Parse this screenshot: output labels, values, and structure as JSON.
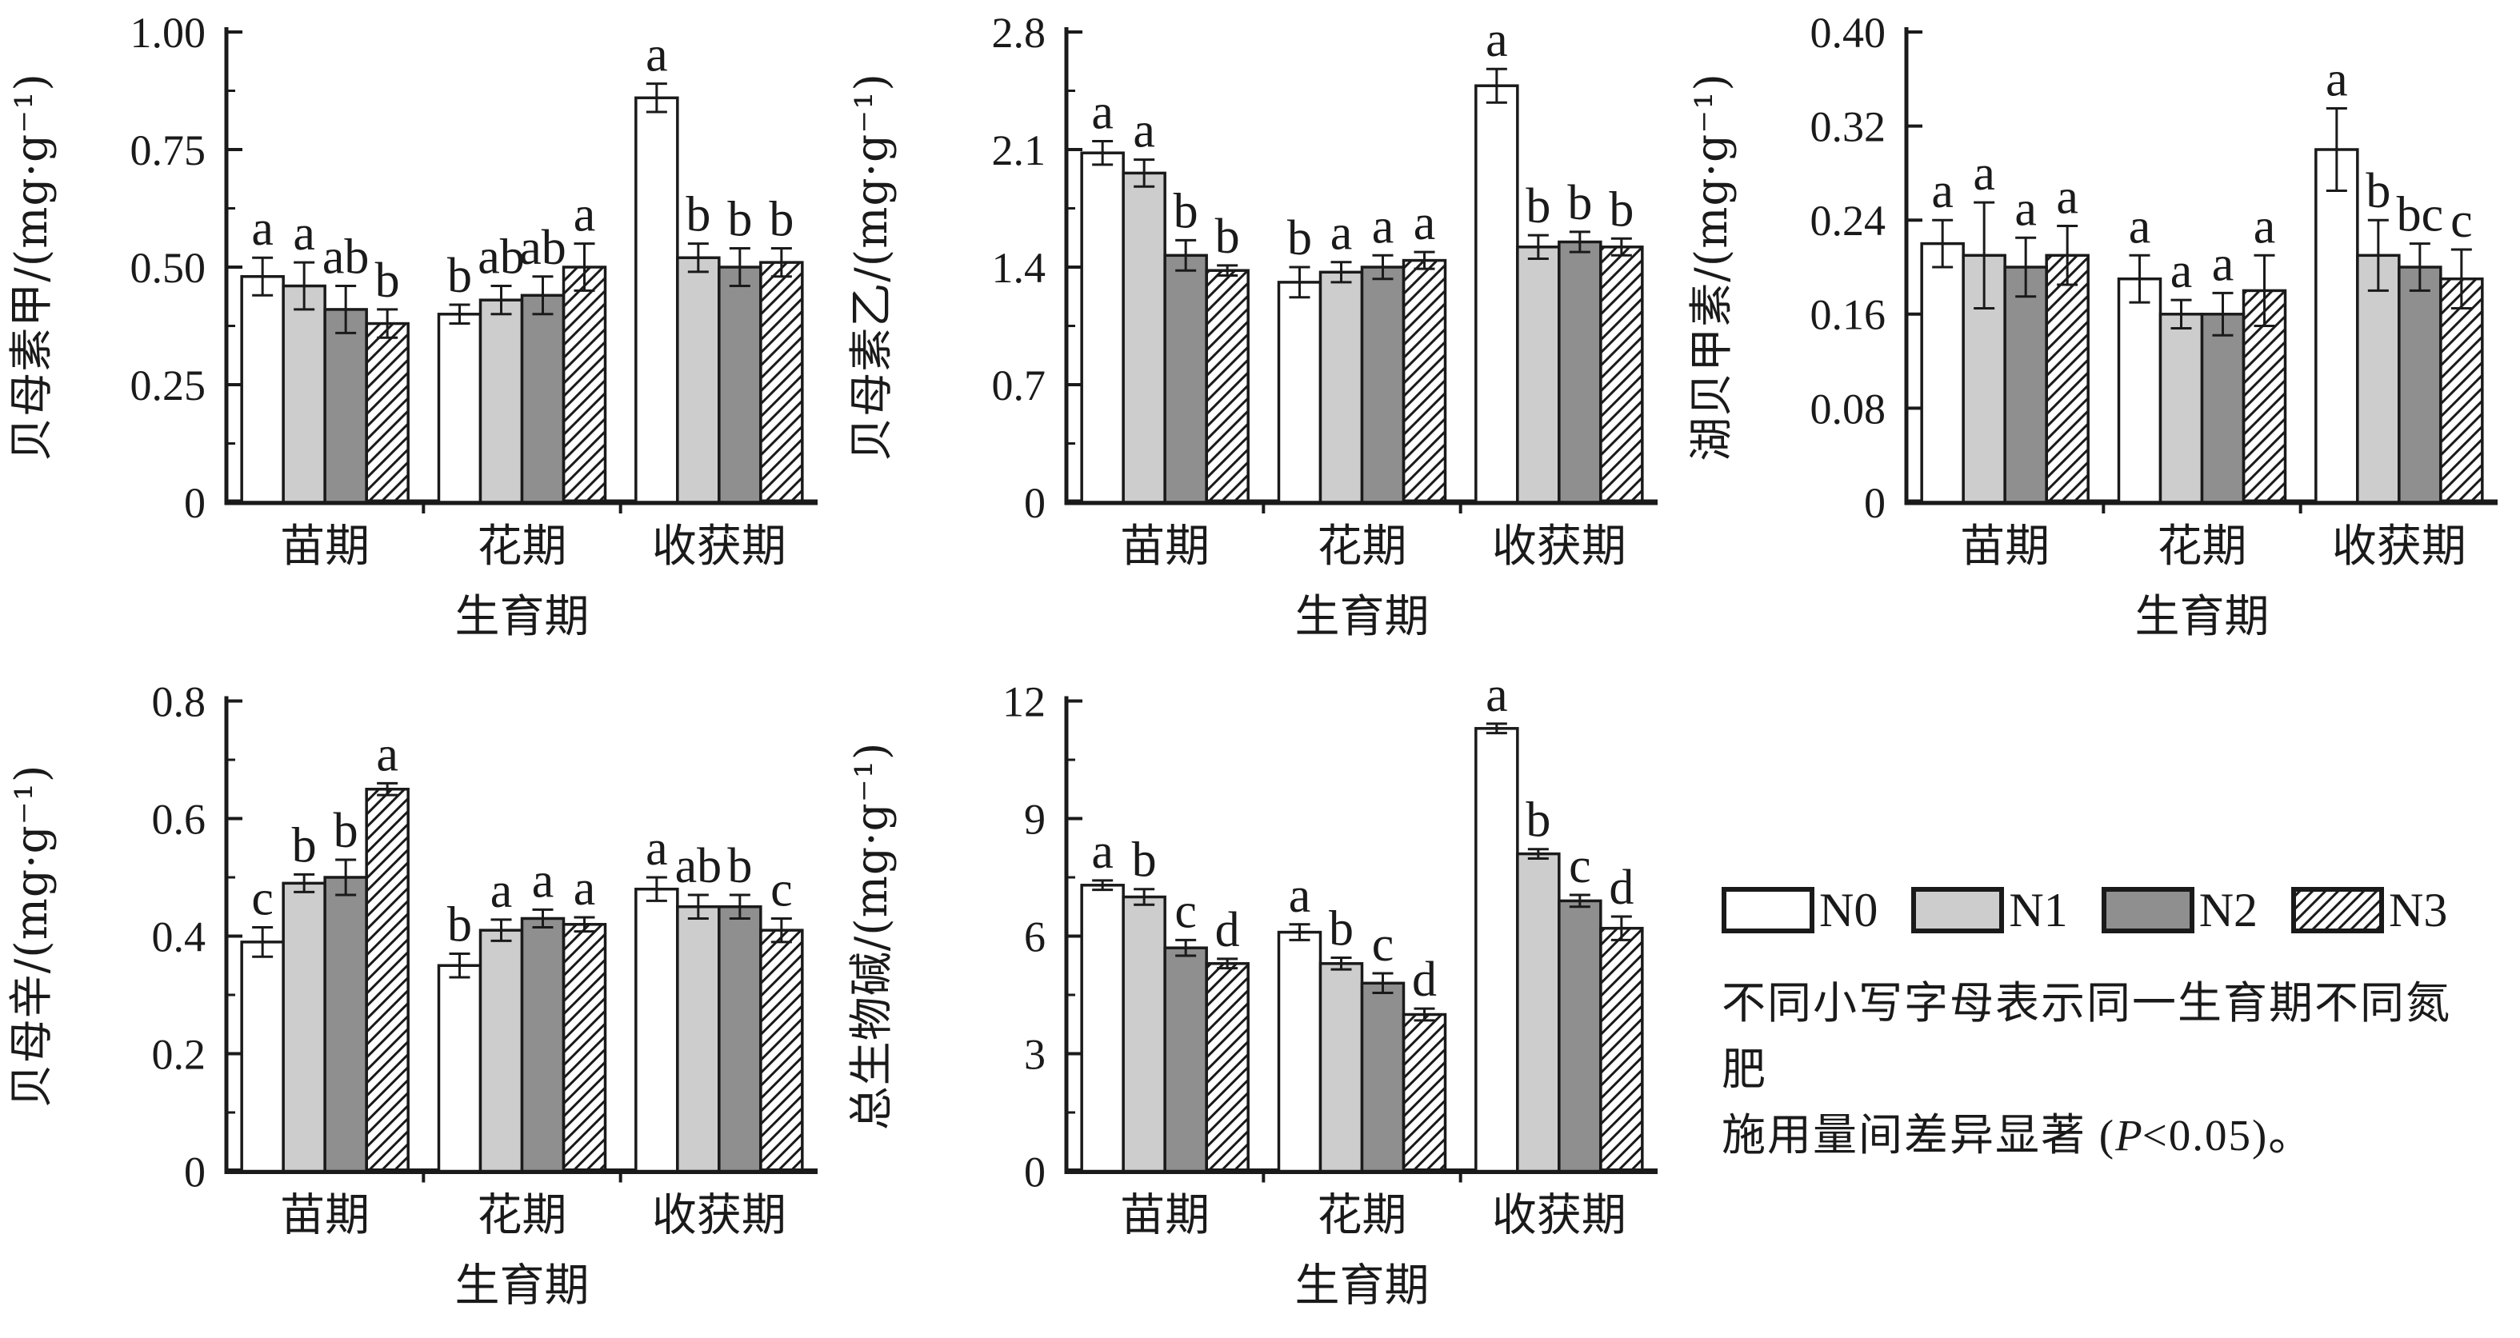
{
  "figure": {
    "background": "#ffffff",
    "axis_color": "#1a1a1a"
  },
  "treatments": [
    {
      "name": "N0",
      "fill": "#ffffff",
      "pattern": "solid"
    },
    {
      "name": "N1",
      "fill": "#cdcdcd",
      "pattern": "solid"
    },
    {
      "name": "N2",
      "fill": "#8f8f8f",
      "pattern": "solid"
    },
    {
      "name": "N3",
      "fill": "#ffffff",
      "pattern": "hatch"
    }
  ],
  "legend": {
    "note_line1": "不同小写字母表示同一生育期不同氮肥",
    "note_line2_pre": "施用量间差异显著 (",
    "note_p": "P",
    "note_line2_post": "<0.05)。"
  },
  "chart_data": [
    {
      "type": "bar",
      "ylabel": "贝母素甲/(mg·g⁻¹)",
      "xlabel": "生育期",
      "categories": [
        "苗期",
        "花期",
        "收获期"
      ],
      "ylim": [
        0,
        1.0
      ],
      "yticks": [
        "0",
        "0.25",
        "0.50",
        "0.75",
        "1.00"
      ],
      "minor_ticks": true,
      "grid": false,
      "legend_position": "none",
      "series": [
        {
          "name": "N0",
          "values": [
            0.48,
            0.4,
            0.86
          ],
          "errors": [
            0.04,
            0.02,
            0.03
          ],
          "letters": [
            "a",
            "b",
            "a"
          ]
        },
        {
          "name": "N1",
          "values": [
            0.46,
            0.43,
            0.52
          ],
          "errors": [
            0.05,
            0.03,
            0.03
          ],
          "letters": [
            "a",
            "ab",
            "b"
          ]
        },
        {
          "name": "N2",
          "values": [
            0.41,
            0.44,
            0.5
          ],
          "errors": [
            0.05,
            0.04,
            0.04
          ],
          "letters": [
            "ab",
            "ab",
            "b"
          ]
        },
        {
          "name": "N3",
          "values": [
            0.38,
            0.5,
            0.51
          ],
          "errors": [
            0.03,
            0.05,
            0.03
          ],
          "letters": [
            "b",
            "a",
            "b"
          ]
        }
      ]
    },
    {
      "type": "bar",
      "ylabel": "贝母素乙/(mg·g⁻¹)",
      "xlabel": "生育期",
      "categories": [
        "苗期",
        "花期",
        "收获期"
      ],
      "ylim": [
        0,
        2.8
      ],
      "yticks": [
        "0",
        "0.7",
        "1.4",
        "2.1",
        "2.8"
      ],
      "minor_ticks": true,
      "grid": false,
      "legend_position": "none",
      "series": [
        {
          "name": "N0",
          "values": [
            2.08,
            1.31,
            2.48
          ],
          "errors": [
            0.07,
            0.09,
            0.1
          ],
          "letters": [
            "a",
            "b",
            "a"
          ]
        },
        {
          "name": "N1",
          "values": [
            1.96,
            1.37,
            1.52
          ],
          "errors": [
            0.08,
            0.06,
            0.07
          ],
          "letters": [
            "a",
            "a",
            "b"
          ]
        },
        {
          "name": "N2",
          "values": [
            1.47,
            1.4,
            1.55
          ],
          "errors": [
            0.09,
            0.07,
            0.06
          ],
          "letters": [
            "b",
            "a",
            "b"
          ]
        },
        {
          "name": "N3",
          "values": [
            1.38,
            1.44,
            1.52
          ],
          "errors": [
            0.03,
            0.05,
            0.05
          ],
          "letters": [
            "b",
            "a",
            "b"
          ]
        }
      ]
    },
    {
      "type": "bar",
      "ylabel": "湖贝甲素/(mg·g⁻¹)",
      "xlabel": "生育期",
      "categories": [
        "苗期",
        "花期",
        "收获期"
      ],
      "ylim": [
        0,
        0.4
      ],
      "yticks": [
        "0",
        "0.08",
        "0.16",
        "0.24",
        "0.32",
        "0.40"
      ],
      "minor_ticks": false,
      "grid": false,
      "legend_position": "none",
      "series": [
        {
          "name": "N0",
          "values": [
            0.22,
            0.19,
            0.3
          ],
          "errors": [
            0.02,
            0.02,
            0.035
          ],
          "letters": [
            "a",
            "a",
            "a"
          ]
        },
        {
          "name": "N1",
          "values": [
            0.21,
            0.16,
            0.21
          ],
          "errors": [
            0.045,
            0.012,
            0.03
          ],
          "letters": [
            "a",
            "a",
            "b"
          ]
        },
        {
          "name": "N2",
          "values": [
            0.2,
            0.16,
            0.2
          ],
          "errors": [
            0.025,
            0.018,
            0.02
          ],
          "letters": [
            "a",
            "a",
            "bc"
          ]
        },
        {
          "name": "N3",
          "values": [
            0.21,
            0.18,
            0.19
          ],
          "errors": [
            0.025,
            0.03,
            0.025
          ],
          "letters": [
            "a",
            "a",
            "c"
          ]
        }
      ]
    },
    {
      "type": "bar",
      "ylabel": "贝母辛/(mg·g⁻¹)",
      "xlabel": "生育期",
      "categories": [
        "苗期",
        "花期",
        "收获期"
      ],
      "ylim": [
        0,
        0.8
      ],
      "yticks": [
        "0",
        "0.2",
        "0.4",
        "0.6",
        "0.8"
      ],
      "minor_ticks": true,
      "grid": false,
      "legend_position": "none",
      "series": [
        {
          "name": "N0",
          "values": [
            0.39,
            0.35,
            0.48
          ],
          "errors": [
            0.025,
            0.02,
            0.02
          ],
          "letters": [
            "c",
            "b",
            "a"
          ]
        },
        {
          "name": "N1",
          "values": [
            0.49,
            0.41,
            0.45
          ],
          "errors": [
            0.015,
            0.018,
            0.02
          ],
          "letters": [
            "b",
            "a",
            "ab"
          ]
        },
        {
          "name": "N2",
          "values": [
            0.5,
            0.43,
            0.45
          ],
          "errors": [
            0.03,
            0.015,
            0.02
          ],
          "letters": [
            "b",
            "a",
            "b"
          ]
        },
        {
          "name": "N3",
          "values": [
            0.65,
            0.42,
            0.41
          ],
          "errors": [
            0.01,
            0.012,
            0.02
          ],
          "letters": [
            "a",
            "a",
            "c"
          ]
        }
      ]
    },
    {
      "type": "bar",
      "ylabel": "总生物碱/(mg·g⁻¹)",
      "xlabel": "生育期",
      "categories": [
        "苗期",
        "花期",
        "收获期"
      ],
      "ylim": [
        0,
        12
      ],
      "yticks": [
        "0",
        "3",
        "6",
        "9",
        "12"
      ],
      "minor_ticks": true,
      "grid": false,
      "legend_position": "none",
      "series": [
        {
          "name": "N0",
          "values": [
            7.3,
            6.1,
            11.3
          ],
          "errors": [
            0.12,
            0.2,
            0.12
          ],
          "letters": [
            "a",
            "a",
            "a"
          ]
        },
        {
          "name": "N1",
          "values": [
            7.0,
            5.3,
            8.1
          ],
          "errors": [
            0.2,
            0.15,
            0.12
          ],
          "letters": [
            "b",
            "b",
            "b"
          ]
        },
        {
          "name": "N2",
          "values": [
            5.7,
            4.8,
            6.9
          ],
          "errors": [
            0.2,
            0.25,
            0.15
          ],
          "letters": [
            "c",
            "c",
            "c"
          ]
        },
        {
          "name": "N3",
          "values": [
            5.3,
            4.0,
            6.2
          ],
          "errors": [
            0.12,
            0.15,
            0.3
          ],
          "letters": [
            "d",
            "d",
            "d"
          ]
        }
      ]
    }
  ]
}
